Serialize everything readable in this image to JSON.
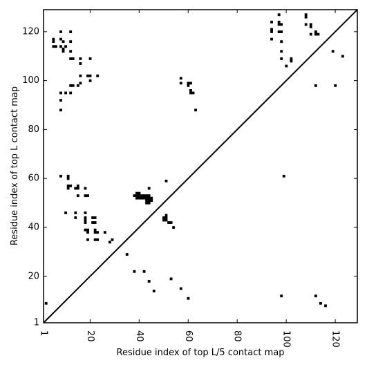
{
  "chart_data": {
    "type": "scatter",
    "title": "",
    "xlabel": "Residue index of top L/5 contact map",
    "ylabel": "Residue index of top L contact map",
    "xlim": [
      1,
      129
    ],
    "ylim": [
      1,
      129
    ],
    "x_ticks": [
      "1",
      "20",
      "40",
      "60",
      "80",
      "100",
      "120"
    ],
    "x_tick_values": [
      1,
      20,
      40,
      60,
      80,
      100,
      120
    ],
    "y_ticks": [
      "1",
      "20",
      "40",
      "60",
      "80",
      "100",
      "120"
    ],
    "y_tick_values": [
      1,
      20,
      40,
      60,
      80,
      100,
      120
    ],
    "diagonal": [
      [
        1,
        1
      ],
      [
        129,
        129
      ]
    ],
    "grid": false,
    "legend": "none",
    "marker_color": "#000000",
    "upper_points": [
      [
        5,
        117
      ],
      [
        5,
        116
      ],
      [
        5,
        114
      ],
      [
        6,
        114
      ],
      [
        8,
        120
      ],
      [
        8,
        117
      ],
      [
        8,
        114
      ],
      [
        9,
        116
      ],
      [
        9,
        113
      ],
      [
        9,
        112
      ],
      [
        10,
        114
      ],
      [
        12,
        120
      ],
      [
        12,
        116
      ],
      [
        12,
        112
      ],
      [
        12,
        109
      ],
      [
        13,
        109
      ],
      [
        16,
        109
      ],
      [
        16,
        107
      ],
      [
        20,
        109
      ],
      [
        8,
        95
      ],
      [
        8,
        92
      ],
      [
        8,
        88
      ],
      [
        10,
        95
      ],
      [
        12,
        98
      ],
      [
        12,
        95
      ],
      [
        13,
        98
      ],
      [
        15,
        98
      ],
      [
        16,
        99
      ],
      [
        16,
        102
      ],
      [
        19,
        102
      ],
      [
        20,
        102
      ],
      [
        20,
        100
      ],
      [
        23,
        102
      ],
      [
        8,
        61
      ],
      [
        11,
        61
      ],
      [
        11,
        60
      ],
      [
        11,
        57
      ],
      [
        11,
        56
      ],
      [
        12,
        57
      ],
      [
        14,
        56
      ],
      [
        15,
        57
      ],
      [
        15,
        56
      ],
      [
        15,
        53
      ],
      [
        18,
        56
      ],
      [
        18,
        53
      ],
      [
        19,
        53
      ],
      [
        57,
        101
      ],
      [
        57,
        99
      ],
      [
        60,
        99
      ],
      [
        60,
        98
      ],
      [
        61,
        99
      ],
      [
        61,
        96
      ],
      [
        61,
        95
      ],
      [
        62,
        95
      ],
      [
        63,
        88
      ],
      [
        94,
        124
      ],
      [
        94,
        121
      ],
      [
        94,
        120
      ],
      [
        94,
        117
      ],
      [
        97,
        127
      ],
      [
        97,
        124
      ],
      [
        97,
        123
      ],
      [
        98,
        123
      ],
      [
        97,
        120
      ],
      [
        98,
        120
      ],
      [
        98,
        116
      ],
      [
        98,
        112
      ],
      [
        98,
        109
      ],
      [
        100,
        106
      ],
      [
        102,
        109
      ],
      [
        102,
        108
      ],
      [
        108,
        127
      ],
      [
        108,
        126
      ],
      [
        108,
        123
      ],
      [
        110,
        123
      ],
      [
        110,
        122
      ],
      [
        110,
        119
      ],
      [
        112,
        120
      ],
      [
        112,
        119
      ],
      [
        113,
        119
      ],
      [
        119,
        112
      ],
      [
        123,
        110
      ],
      [
        112,
        98
      ],
      [
        120,
        98
      ],
      [
        99,
        61
      ]
    ],
    "lower_points": [
      [
        2,
        9
      ],
      [
        10,
        46
      ],
      [
        14,
        46
      ],
      [
        14,
        44
      ],
      [
        18,
        46
      ],
      [
        18,
        44
      ],
      [
        18,
        43
      ],
      [
        18,
        42
      ],
      [
        18,
        39
      ],
      [
        19,
        39
      ],
      [
        19,
        38
      ],
      [
        19,
        35
      ],
      [
        21,
        44
      ],
      [
        21,
        42
      ],
      [
        22,
        44
      ],
      [
        22,
        42
      ],
      [
        22,
        39
      ],
      [
        22,
        38
      ],
      [
        23,
        38
      ],
      [
        22,
        35
      ],
      [
        23,
        35
      ],
      [
        26,
        38
      ],
      [
        28,
        34
      ],
      [
        29,
        35
      ],
      [
        35,
        29
      ],
      [
        38,
        22
      ],
      [
        42,
        22
      ],
      [
        44,
        18
      ],
      [
        46,
        14
      ],
      [
        53,
        19
      ],
      [
        57,
        15
      ],
      [
        60,
        11
      ],
      [
        98,
        12
      ],
      [
        112,
        12
      ],
      [
        114,
        9
      ],
      [
        116,
        8
      ],
      [
        38,
        53
      ],
      [
        39,
        54
      ],
      [
        39,
        53
      ],
      [
        39,
        52
      ],
      [
        40,
        54
      ],
      [
        40,
        53
      ],
      [
        40,
        52
      ],
      [
        41,
        53
      ],
      [
        41,
        52
      ],
      [
        42,
        53
      ],
      [
        42,
        52
      ],
      [
        43,
        53
      ],
      [
        43,
        52
      ],
      [
        43,
        51
      ],
      [
        43,
        50
      ],
      [
        44,
        53
      ],
      [
        44,
        52
      ],
      [
        44,
        51
      ],
      [
        44,
        50
      ],
      [
        45,
        52
      ],
      [
        45,
        51
      ],
      [
        44,
        56
      ],
      [
        50,
        44
      ],
      [
        50,
        43
      ],
      [
        51,
        45
      ],
      [
        51,
        44
      ],
      [
        51,
        43
      ],
      [
        51,
        59
      ],
      [
        52,
        42
      ],
      [
        53,
        42
      ],
      [
        54,
        40
      ]
    ]
  }
}
